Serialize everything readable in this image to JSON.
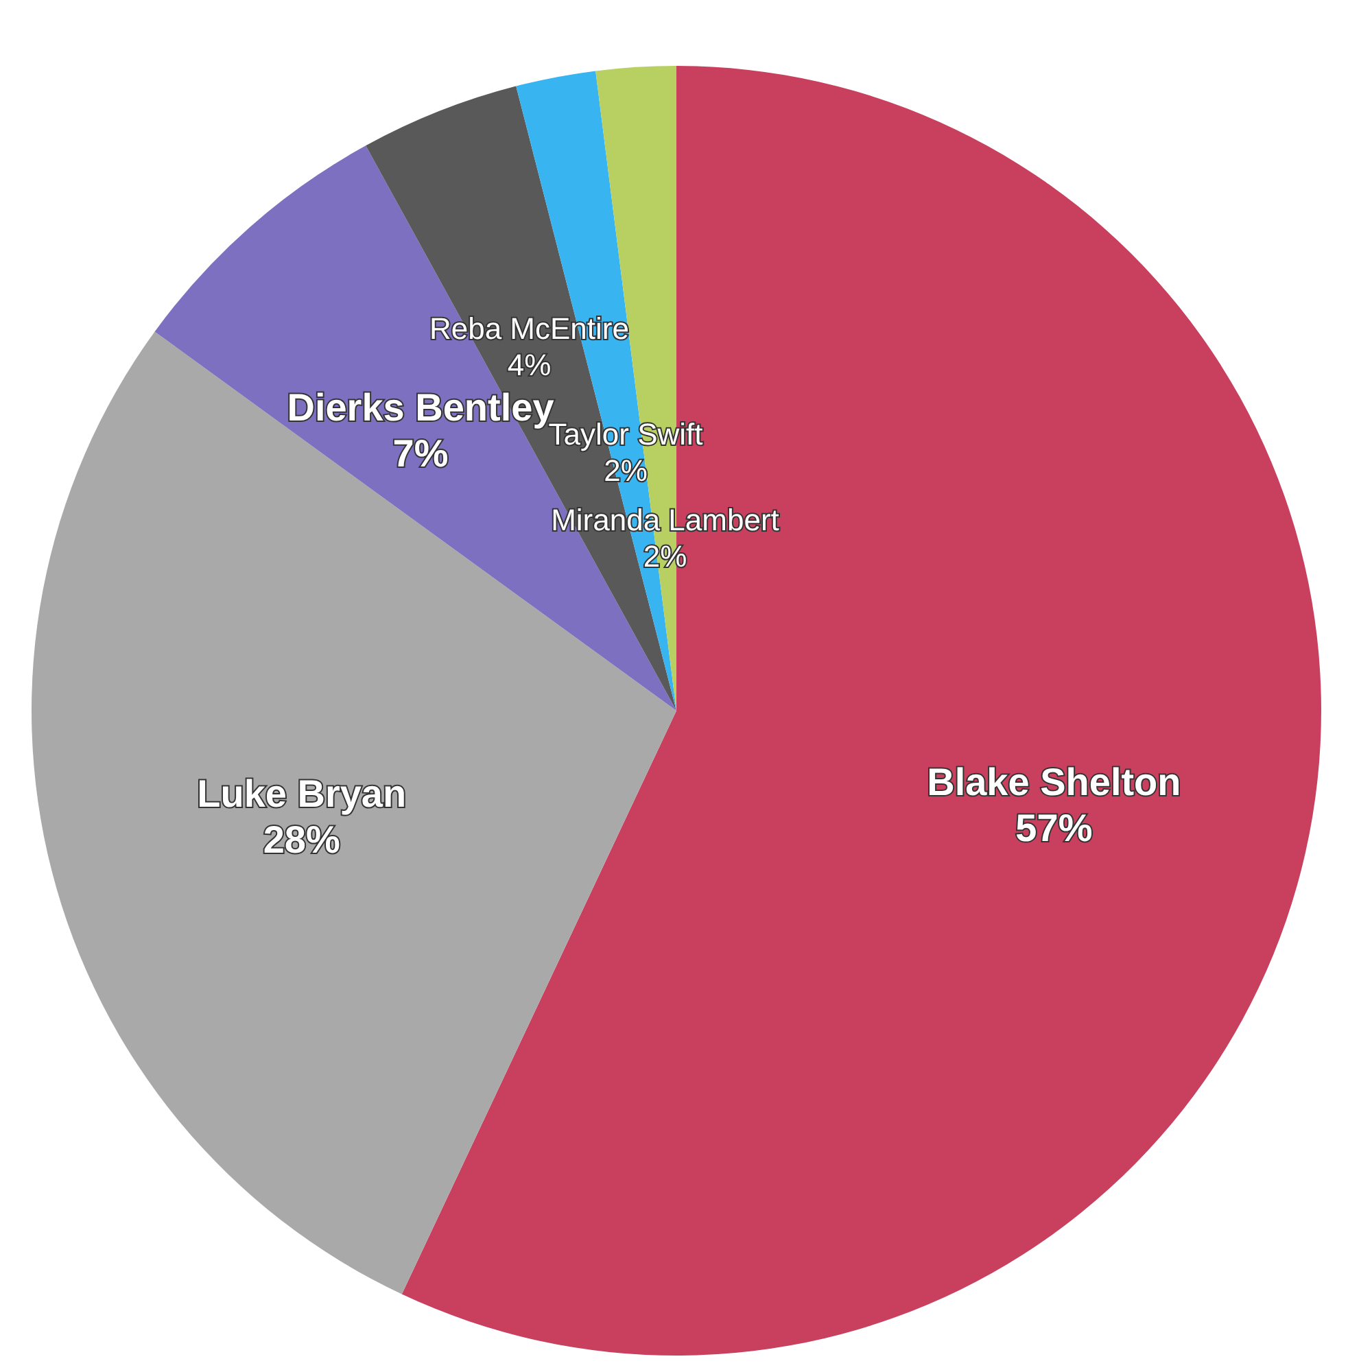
{
  "chart_data": {
    "type": "pie",
    "categories": [
      "Blake Shelton",
      "Luke Bryan",
      "Dierks Bentley",
      "Reba McEntire",
      "Taylor Swift",
      "Miranda Lambert"
    ],
    "values": [
      57,
      28,
      7,
      4,
      2,
      2
    ],
    "colors": [
      "#c8405e",
      "#a9a9a9",
      "#7d70c0",
      "#595959",
      "#38b4f0",
      "#b8cf62"
    ],
    "value_labels": [
      "57%",
      "28%",
      "7%",
      "4%",
      "2%",
      "2%"
    ]
  }
}
